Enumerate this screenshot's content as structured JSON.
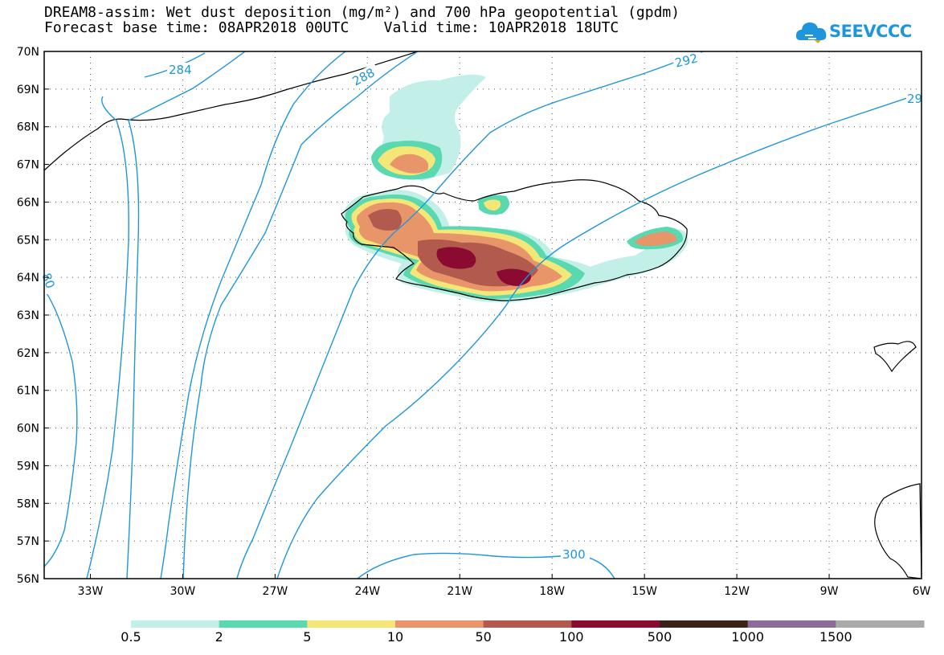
{
  "title_line1": "DREAM8-assim: Wet dust deposition (mg/m²) and 700 hPa geopotential (gpdm)",
  "title_line2": "Forecast base time: 08APR2018 00UTC    Valid time: 10APR2018 18UTC",
  "logo": {
    "text": "SEEVCCC",
    "icon": "cloud-icon",
    "color": "#1e96dc"
  },
  "lat_labels": [
    "70N",
    "69N",
    "68N",
    "67N",
    "66N",
    "65N",
    "64N",
    "63N",
    "62N",
    "61N",
    "60N",
    "59N",
    "58N",
    "57N",
    "56N"
  ],
  "lon_labels": [
    "33W",
    "30W",
    "27W",
    "24W",
    "21W",
    "18W",
    "15W",
    "12W",
    "9W",
    "6W"
  ],
  "contour_labels": [
    "284",
    "288",
    "292",
    "29",
    "300",
    "80"
  ],
  "legend": {
    "thresholds": [
      "0.5",
      "2",
      "5",
      "10",
      "50",
      "100",
      "500",
      "1000",
      "1500"
    ],
    "colors": [
      "#c2f0e8",
      "#5ad8b0",
      "#f5e678",
      "#e8956a",
      "#b25a4e",
      "#8a0a32",
      "#3a2218",
      "#8c6a9a",
      "#aaaaaa"
    ]
  },
  "contour_color": "#1e96dc"
}
